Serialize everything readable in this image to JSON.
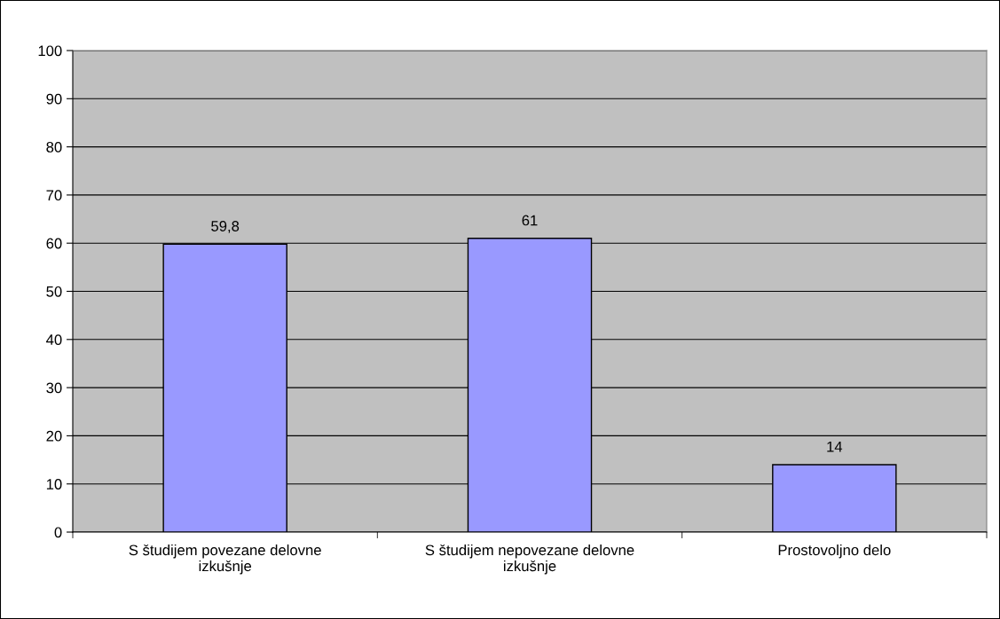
{
  "chart_data": {
    "type": "bar",
    "categories": [
      "S študijem povezane delovne\nizkušnje",
      "S študijem nepovezane delovne\nizkušnje",
      "Prostovoljno delo"
    ],
    "values": [
      59.8,
      61,
      14
    ],
    "value_labels": [
      "59,8",
      "61",
      "14"
    ],
    "color": "#9999ff",
    "ylim": [
      0,
      100
    ],
    "yticks": [
      0,
      10,
      20,
      30,
      40,
      50,
      60,
      70,
      80,
      90,
      100
    ],
    "grid": "y"
  }
}
